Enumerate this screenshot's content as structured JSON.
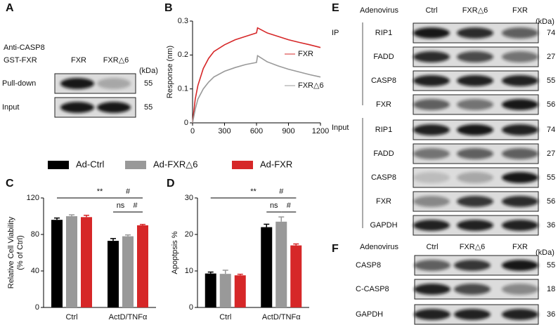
{
  "panel_labels": [
    "A",
    "B",
    "C",
    "D",
    "E",
    "F"
  ],
  "panel_a": {
    "probe_lines": [
      "Anti-CASP8",
      "GST-FXR"
    ],
    "columns": [
      "FXR",
      "FXR△6"
    ],
    "unit": "(kDa)",
    "rows": [
      {
        "label": "Pull-down",
        "kda": 55
      },
      {
        "label": "Input",
        "kda": 55
      }
    ]
  },
  "panel_e": {
    "header": "Adenovirus",
    "columns": [
      "Ctrl",
      "FXR△6",
      "FXR"
    ],
    "unit": "(kDa)",
    "groups": [
      {
        "label": "IP",
        "rows": [
          {
            "label": "RIP1",
            "kda": 74
          },
          {
            "label": "FADD",
            "kda": 27
          },
          {
            "label": "CASP8",
            "kda": 55
          },
          {
            "label": "FXR",
            "kda": 56
          }
        ]
      },
      {
        "label": "Input",
        "rows": [
          {
            "label": "RIP1",
            "kda": 74
          },
          {
            "label": "FADD",
            "kda": 27
          },
          {
            "label": "CASP8",
            "kda": 55
          },
          {
            "label": "FXR",
            "kda": 56
          },
          {
            "label": "GAPDH",
            "kda": 36
          }
        ]
      }
    ]
  },
  "panel_f": {
    "header": "Adenovirus",
    "columns": [
      "Ctrl",
      "FXR△6",
      "FXR"
    ],
    "unit": "(kDa)",
    "rows": [
      {
        "label": "CASP8",
        "kda": 55
      },
      {
        "label": "C-CASP8",
        "kda": 18
      },
      {
        "label": "GAPDH",
        "kda": 36
      }
    ]
  },
  "chart_data": [
    {
      "type": "line",
      "ylabel": "Response (nm)",
      "x": [
        0,
        25,
        50,
        100,
        150,
        200,
        300,
        400,
        500,
        600,
        610,
        700,
        800,
        900,
        1000,
        1100,
        1200
      ],
      "series": [
        {
          "name": "FXR",
          "color": "#d62728",
          "values": [
            0,
            0.07,
            0.11,
            0.16,
            0.19,
            0.21,
            0.23,
            0.245,
            0.255,
            0.265,
            0.28,
            0.265,
            0.255,
            0.245,
            0.237,
            0.23,
            0.222
          ]
        },
        {
          "name": "FXR△6",
          "color": "#999999",
          "values": [
            0,
            0.04,
            0.07,
            0.1,
            0.12,
            0.135,
            0.152,
            0.163,
            0.172,
            0.178,
            0.198,
            0.18,
            0.168,
            0.158,
            0.15,
            0.142,
            0.135
          ]
        }
      ],
      "xlim": [
        0,
        1200
      ],
      "ylim": [
        0,
        0.3
      ],
      "xticks": [
        0,
        300,
        600,
        900,
        1200
      ],
      "yticks": [
        0,
        0.1,
        0.2,
        0.3
      ]
    },
    {
      "type": "bar",
      "ylabel": [
        "Relative Cell Viability",
        "(% of Ctrl)"
      ],
      "categories": [
        "Ctrl",
        "ActD/TNFα"
      ],
      "series": [
        {
          "name": "Ad-Ctrl",
          "color": "#000000",
          "values": [
            96,
            73
          ],
          "errors": [
            2,
            2.5
          ]
        },
        {
          "name": "Ad-FXR△6",
          "color": "#999999",
          "values": [
            100,
            78
          ],
          "errors": [
            1.5,
            1.5
          ]
        },
        {
          "name": "Ad-FXR",
          "color": "#d62728",
          "values": [
            99,
            90
          ],
          "errors": [
            2,
            1
          ]
        }
      ],
      "ylim": [
        0,
        120
      ],
      "yticks": [
        0,
        40,
        80,
        120
      ],
      "annotations": [
        "**",
        "#",
        "ns",
        "#"
      ]
    },
    {
      "type": "bar",
      "ylabel": [
        "Apoptpsis %"
      ],
      "categories": [
        "Ctrl",
        "ActD/TNFα"
      ],
      "series": [
        {
          "color": "#000000",
          "values": [
            9.3,
            22
          ],
          "errors": [
            0.4,
            0.8
          ]
        },
        {
          "color": "#999999",
          "values": [
            9.2,
            23.5
          ],
          "errors": [
            1,
            1.3
          ]
        },
        {
          "color": "#d62728",
          "values": [
            8.8,
            17
          ],
          "errors": [
            0.3,
            0.4
          ]
        }
      ],
      "ylim": [
        0,
        30
      ],
      "yticks": [
        0,
        10,
        20,
        30
      ],
      "annotations": [
        "**",
        "#",
        "ns",
        "#"
      ]
    }
  ]
}
